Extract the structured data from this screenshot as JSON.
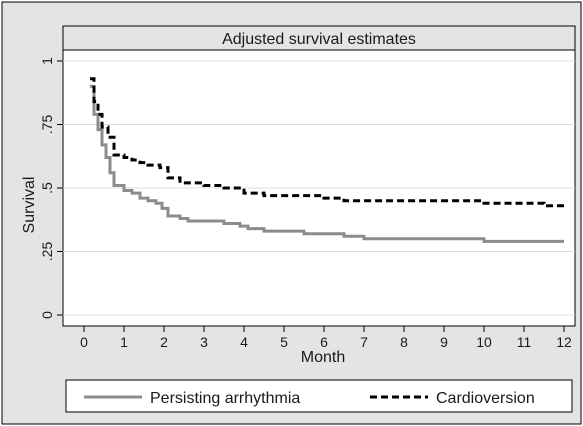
{
  "chart_data": {
    "type": "line",
    "title": "Adjusted survival estimates",
    "xlabel": "Month",
    "ylabel": "Survival",
    "xlim": [
      0,
      12
    ],
    "ylim": [
      0,
      1
    ],
    "x_ticks": [
      {
        "value": 0,
        "label": "0"
      },
      {
        "value": 1,
        "label": "1"
      },
      {
        "value": 2,
        "label": "2"
      },
      {
        "value": 3,
        "label": "3"
      },
      {
        "value": 4,
        "label": "4"
      },
      {
        "value": 5,
        "label": "5"
      },
      {
        "value": 6,
        "label": "6"
      },
      {
        "value": 7,
        "label": "7"
      },
      {
        "value": 8,
        "label": "8"
      },
      {
        "value": 9,
        "label": "9"
      },
      {
        "value": 10,
        "label": "10"
      },
      {
        "value": 11,
        "label": "11"
      },
      {
        "value": 12,
        "label": "12"
      }
    ],
    "y_ticks": [
      {
        "value": 0,
        "label": "0"
      },
      {
        "value": 0.25,
        "label": ".25"
      },
      {
        "value": 0.5,
        "label": ".5"
      },
      {
        "value": 0.75,
        "label": ".75"
      },
      {
        "value": 1,
        "label": "1"
      }
    ],
    "grid": true,
    "legend_position": "bottom",
    "series": [
      {
        "name": "Persisting arrhythmia",
        "color": "#8c8c8c",
        "style": "solid",
        "x": [
          0.15,
          0.25,
          0.35,
          0.45,
          0.55,
          0.65,
          0.75,
          1.0,
          1.2,
          1.4,
          1.6,
          1.8,
          1.95,
          2.1,
          2.4,
          2.6,
          3.0,
          3.5,
          3.9,
          4.1,
          4.5,
          5.0,
          5.5,
          6.0,
          6.5,
          7.0,
          8.0,
          9.0,
          10.0,
          11.0,
          12.0
        ],
        "values": [
          0.9,
          0.79,
          0.73,
          0.67,
          0.62,
          0.56,
          0.51,
          0.49,
          0.48,
          0.46,
          0.45,
          0.44,
          0.42,
          0.39,
          0.38,
          0.37,
          0.37,
          0.36,
          0.35,
          0.34,
          0.33,
          0.33,
          0.32,
          0.32,
          0.31,
          0.3,
          0.3,
          0.3,
          0.29,
          0.29,
          0.29
        ]
      },
      {
        "name": "Cardioversion",
        "color": "#000000",
        "style": "dashed",
        "x": [
          0.15,
          0.25,
          0.35,
          0.45,
          0.6,
          0.75,
          1.0,
          1.2,
          1.4,
          1.6,
          1.9,
          2.1,
          2.4,
          3.0,
          3.5,
          4.0,
          4.5,
          5.0,
          6.0,
          6.5,
          7.0,
          8.0,
          9.0,
          10.0,
          11.0,
          11.5,
          12.0
        ],
        "values": [
          0.93,
          0.84,
          0.79,
          0.74,
          0.7,
          0.63,
          0.62,
          0.61,
          0.6,
          0.59,
          0.58,
          0.54,
          0.52,
          0.51,
          0.5,
          0.48,
          0.47,
          0.47,
          0.46,
          0.45,
          0.45,
          0.45,
          0.45,
          0.44,
          0.44,
          0.43,
          0.43
        ]
      }
    ]
  }
}
